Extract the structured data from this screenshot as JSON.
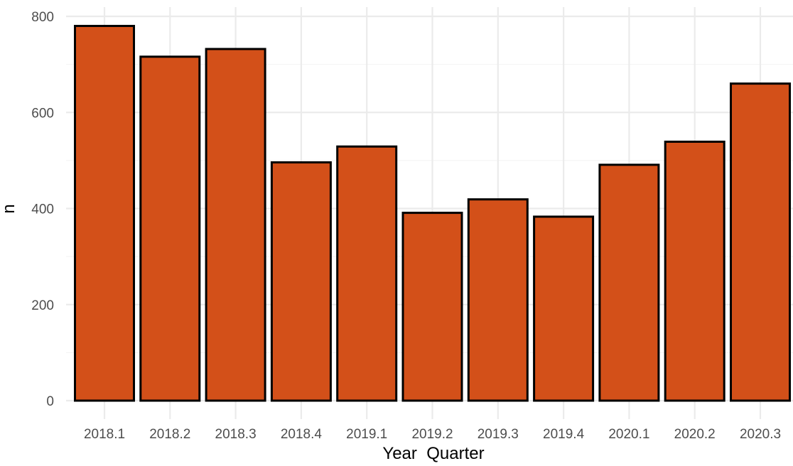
{
  "chart_data": {
    "type": "bar",
    "title": "",
    "xlabel": "Year  Quarter",
    "ylabel": "n",
    "categories": [
      "2018.1",
      "2018.2",
      "2018.3",
      "2018.4",
      "2019.1",
      "2019.2",
      "2019.3",
      "2019.4",
      "2020.1",
      "2020.2",
      "2020.3"
    ],
    "values": [
      780,
      716,
      732,
      496,
      529,
      391,
      419,
      383,
      491,
      539,
      660
    ],
    "ylim": [
      0,
      800
    ],
    "yticks": [
      0,
      200,
      400,
      600,
      800
    ],
    "grid": true,
    "bar_color": "#D35019",
    "bar_outline_color": "#000000"
  }
}
